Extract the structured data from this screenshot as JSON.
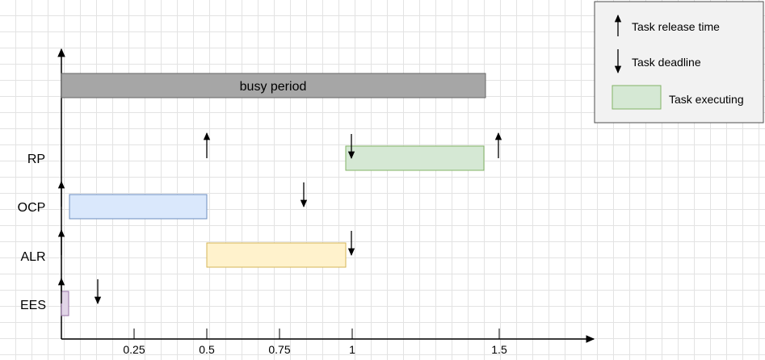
{
  "diagram": {
    "busy_label": "busy period",
    "rows": [
      {
        "label": "RP",
        "bar_color": "#d5e8d4",
        "bar_stroke": "#82b366"
      },
      {
        "label": "OCP",
        "bar_color": "#dae8fc",
        "bar_stroke": "#6c8ebf"
      },
      {
        "label": "ALR",
        "bar_color": "#fff2cc",
        "bar_stroke": "#d6b656"
      },
      {
        "label": "EES",
        "bar_color": "#e1d5e7",
        "bar_stroke": "#9673a6"
      }
    ],
    "ticks": [
      "0.25",
      "0.5",
      "0.75",
      "1",
      "1.5"
    ],
    "busy_color": "#a6a6a6"
  },
  "legend": {
    "release_label": "Task release time",
    "deadline_label": "Task deadline",
    "executing_label": "Task executing",
    "executing_color": "#d5e8d4"
  }
}
